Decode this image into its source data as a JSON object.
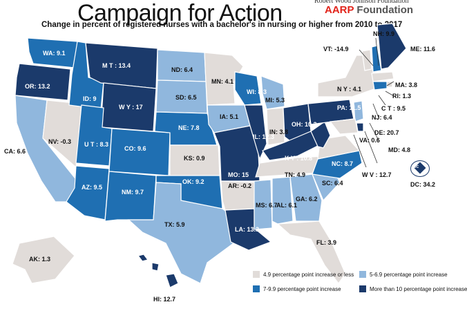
{
  "header": {
    "title": "Campaign for Action",
    "subtitle": "Change in percent of registered nurses with a bachelor's in nursing or higher from 2010 to 2017",
    "brand_top": "Robert Wood Johnson Foundation",
    "brand_aarp": "AARP",
    "brand_foundation": "Foundation"
  },
  "colors": {
    "lt5": "#e1dcd9",
    "c5_7": "#90b7dd",
    "c7_10": "#1f6fb2",
    "gt10": "#1b3a6b"
  },
  "legend": [
    {
      "label": "4.9 percentage point increase or less",
      "color": "#e1dcd9"
    },
    {
      "label": "5-6.9 percentage point increase",
      "color": "#90b7dd"
    },
    {
      "label": "7-9.9 percentage point increase",
      "color": "#1f6fb2"
    },
    {
      "label": "More than 10 percentage point increase",
      "color": "#1b3a6b"
    }
  ],
  "states": [
    {
      "code": "WA",
      "label": "WA: 9.1",
      "value": 9.1
    },
    {
      "code": "OR",
      "label": "OR: 13.2",
      "value": 13.2
    },
    {
      "code": "CA",
      "label": "CA: 6.6",
      "value": 6.6
    },
    {
      "code": "NV",
      "label": "NV: -0.3",
      "value": -0.3
    },
    {
      "code": "ID",
      "label": "ID: 9",
      "value": 9
    },
    {
      "code": "MT",
      "label": "M T : 13.4",
      "value": 13.4
    },
    {
      "code": "WY",
      "label": "W Y : 17",
      "value": 17
    },
    {
      "code": "UT",
      "label": "U T : 8.3",
      "value": 8.3
    },
    {
      "code": "AZ",
      "label": "AZ: 9.5",
      "value": 9.5
    },
    {
      "code": "CO",
      "label": "CO: 9.6",
      "value": 9.6
    },
    {
      "code": "NM",
      "label": "NM: 9.7",
      "value": 9.7
    },
    {
      "code": "ND",
      "label": "ND: 6.4",
      "value": 6.4
    },
    {
      "code": "SD",
      "label": "SD: 6.5",
      "value": 6.5
    },
    {
      "code": "NE",
      "label": "NE: 7.8",
      "value": 7.8
    },
    {
      "code": "KS",
      "label": "KS: 0.9",
      "value": 0.9
    },
    {
      "code": "OK",
      "label": "OK: 9.2",
      "value": 9.2
    },
    {
      "code": "TX",
      "label": "TX: 5.9",
      "value": 5.9
    },
    {
      "code": "MN",
      "label": "MN: 4.1",
      "value": 4.1
    },
    {
      "code": "IA",
      "label": "IA: 5.1",
      "value": 5.1
    },
    {
      "code": "MO",
      "label": "MO: 15",
      "value": 15
    },
    {
      "code": "AR",
      "label": "AR: -0.2",
      "value": -0.2
    },
    {
      "code": "LA",
      "label": "LA: 13.3",
      "value": 13.3
    },
    {
      "code": "WI",
      "label": "WI: 8.3",
      "value": 8.3
    },
    {
      "code": "IL",
      "label": "IL: 12.3",
      "value": 12.3
    },
    {
      "code": "MI",
      "label": "MI: 5.3",
      "value": 5.3
    },
    {
      "code": "IN",
      "label": "IN: 3.8",
      "value": 3.8
    },
    {
      "code": "OH",
      "label": "OH: 10.3",
      "value": 10.3
    },
    {
      "code": "KY",
      "label": "K Y : 10.8",
      "value": 10.8
    },
    {
      "code": "TN",
      "label": "TN: 4.9",
      "value": 4.9
    },
    {
      "code": "MS",
      "label": "MS: 6.7",
      "value": 6.7
    },
    {
      "code": "AL",
      "label": "AL: 6.1",
      "value": 6.1
    },
    {
      "code": "GA",
      "label": "GA: 6.2",
      "value": 6.2
    },
    {
      "code": "FL",
      "label": "FL: 3.9",
      "value": 3.9
    },
    {
      "code": "SC",
      "label": "SC: 6.4",
      "value": 6.4
    },
    {
      "code": "NC",
      "label": "NC: 8.7",
      "value": 8.7
    },
    {
      "code": "VA",
      "label": "VA: 0.6",
      "value": 0.6
    },
    {
      "code": "WV",
      "label": "W V : 12.7",
      "value": 12.7
    },
    {
      "code": "PA",
      "label": "PA: 11.5",
      "value": 11.5
    },
    {
      "code": "NY",
      "label": "N Y : 4.1",
      "value": 4.1
    },
    {
      "code": "VT",
      "label": "VT: -14.9",
      "value": -14.9
    },
    {
      "code": "NH",
      "label": "NH: 9.9",
      "value": 9.9
    },
    {
      "code": "ME",
      "label": "ME: 11.6",
      "value": 11.6
    },
    {
      "code": "MA",
      "label": "MA: 3.8",
      "value": 3.8
    },
    {
      "code": "RI",
      "label": "RI: 1.3",
      "value": 1.3
    },
    {
      "code": "CT",
      "label": "C T : 9.5",
      "value": 9.5
    },
    {
      "code": "NJ",
      "label": "NJ: 6.4",
      "value": 6.4
    },
    {
      "code": "DE",
      "label": "DE: 20.7",
      "value": 20.7
    },
    {
      "code": "MD",
      "label": "MD: 4.8",
      "value": 4.8
    },
    {
      "code": "DC",
      "label": "DC: 34.2",
      "value": 34.2
    },
    {
      "code": "AK",
      "label": "AK: 1.3",
      "value": 1.3
    },
    {
      "code": "HI",
      "label": "HI: 12.7",
      "value": 12.7
    }
  ],
  "dc_inset_label": "DC"
}
